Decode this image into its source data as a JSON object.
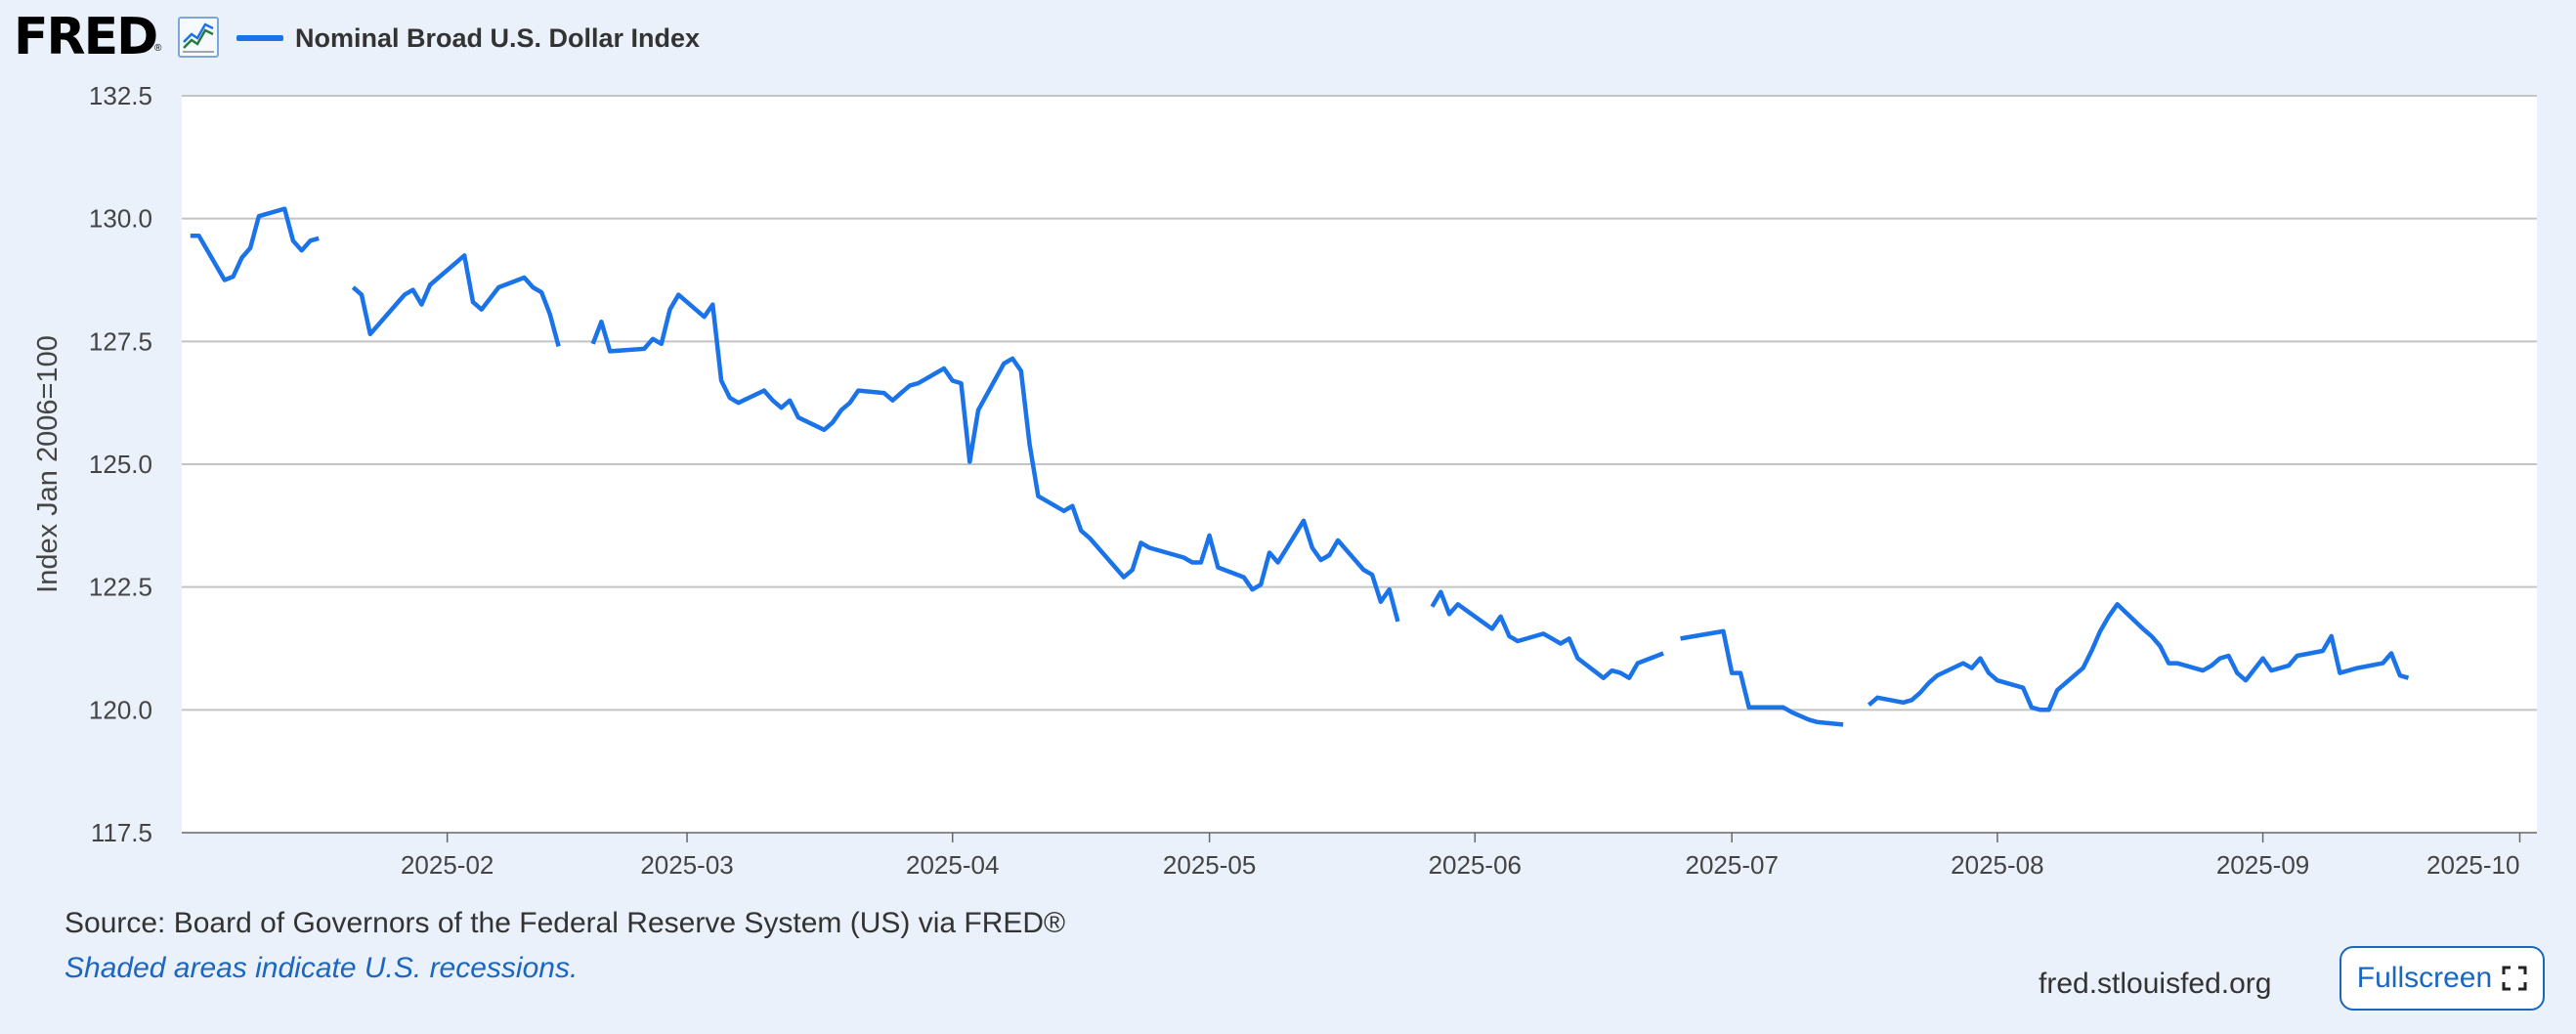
{
  "header": {
    "logo_text": "FRED",
    "logo_reg": "®",
    "graph_icon": "line-graph-icon",
    "legend_label": "Nominal Broad U.S. Dollar Index"
  },
  "colors": {
    "series": "#1a73e8",
    "background": "#eaf1fa",
    "plot": "#ffffff",
    "grid": "#c4c4c4",
    "link": "#1a66c0"
  },
  "footer": {
    "source": "Source: Board of Governors of the Federal Reserve System (US) via FRED®",
    "recessions": "Shaded areas indicate U.S. recessions.",
    "site": "fred.stlouisfed.org",
    "fullscreen_label": "Fullscreen",
    "fullscreen_icon": "expand-icon"
  },
  "chart_data": {
    "type": "line",
    "ylabel": "Index Jan 2006=100",
    "ylim": [
      117.5,
      132.5
    ],
    "yticks": [
      117.5,
      120.0,
      122.5,
      125.0,
      127.5,
      130.0,
      132.5
    ],
    "ytick_labels": [
      "117.5",
      "120.0",
      "122.5",
      "125.0",
      "127.5",
      "130.0",
      "132.5"
    ],
    "xlim": [
      "2025-01-01",
      "2025-10-03"
    ],
    "xtick_labels": [
      "2025-02",
      "2025-03",
      "2025-04",
      "2025-05",
      "2025-06",
      "2025-07",
      "2025-08",
      "2025-09",
      "2025-10"
    ],
    "xticks": [
      "2025-02-01",
      "2025-03-01",
      "2025-04-01",
      "2025-05-01",
      "2025-06-01",
      "2025-07-01",
      "2025-08-01",
      "2025-09-01",
      "2025-10-01"
    ],
    "grid": "horizontal",
    "legend": "top-left",
    "series": [
      {
        "name": "Nominal Broad U.S. Dollar Index",
        "segments": [
          [
            [
              "2025-01-02",
              129.65
            ],
            [
              "2025-01-03",
              129.65
            ],
            [
              "2025-01-06",
              128.75
            ],
            [
              "2025-01-07",
              128.82
            ],
            [
              "2025-01-08",
              129.2
            ],
            [
              "2025-01-09",
              129.4
            ],
            [
              "2025-01-10",
              130.05
            ],
            [
              "2025-01-13",
              130.2
            ],
            [
              "2025-01-14",
              129.55
            ],
            [
              "2025-01-15",
              129.35
            ],
            [
              "2025-01-16",
              129.55
            ],
            [
              "2025-01-17",
              129.6
            ]
          ],
          [
            [
              "2025-01-21",
              128.6
            ],
            [
              "2025-01-22",
              128.45
            ],
            [
              "2025-01-23",
              127.65
            ],
            [
              "2025-01-27",
              128.45
            ],
            [
              "2025-01-28",
              128.55
            ],
            [
              "2025-01-29",
              128.25
            ],
            [
              "2025-01-30",
              128.65
            ],
            [
              "2025-02-03",
              129.25
            ],
            [
              "2025-02-04",
              128.3
            ],
            [
              "2025-02-05",
              128.15
            ],
            [
              "2025-02-07",
              128.6
            ],
            [
              "2025-02-10",
              128.8
            ],
            [
              "2025-02-11",
              128.6
            ],
            [
              "2025-02-12",
              128.5
            ],
            [
              "2025-02-13",
              128.05
            ],
            [
              "2025-02-14",
              127.4
            ]
          ],
          [
            [
              "2025-02-18",
              127.45
            ],
            [
              "2025-02-19",
              127.9
            ],
            [
              "2025-02-20",
              127.3
            ],
            [
              "2025-02-24",
              127.35
            ],
            [
              "2025-02-25",
              127.55
            ],
            [
              "2025-02-26",
              127.45
            ],
            [
              "2025-02-27",
              128.15
            ],
            [
              "2025-02-28",
              128.45
            ],
            [
              "2025-03-03",
              128.0
            ],
            [
              "2025-03-04",
              128.25
            ],
            [
              "2025-03-05",
              126.7
            ],
            [
              "2025-03-06",
              126.35
            ],
            [
              "2025-03-07",
              126.25
            ],
            [
              "2025-03-10",
              126.5
            ],
            [
              "2025-03-11",
              126.3
            ],
            [
              "2025-03-12",
              126.15
            ],
            [
              "2025-03-13",
              126.3
            ],
            [
              "2025-03-14",
              125.95
            ],
            [
              "2025-03-17",
              125.7
            ],
            [
              "2025-03-18",
              125.85
            ],
            [
              "2025-03-19",
              126.1
            ],
            [
              "2025-03-20",
              126.25
            ],
            [
              "2025-03-21",
              126.5
            ],
            [
              "2025-03-24",
              126.45
            ],
            [
              "2025-03-25",
              126.3
            ],
            [
              "2025-03-26",
              126.45
            ],
            [
              "2025-03-27",
              126.6
            ],
            [
              "2025-03-28",
              126.65
            ],
            [
              "2025-03-31",
              126.95
            ],
            [
              "2025-04-01",
              126.7
            ],
            [
              "2025-04-02",
              126.65
            ],
            [
              "2025-04-03",
              125.05
            ],
            [
              "2025-04-04",
              126.1
            ],
            [
              "2025-04-07",
              127.05
            ],
            [
              "2025-04-08",
              127.15
            ],
            [
              "2025-04-09",
              126.9
            ],
            [
              "2025-04-10",
              125.4
            ],
            [
              "2025-04-11",
              124.35
            ],
            [
              "2025-04-14",
              124.05
            ],
            [
              "2025-04-15",
              124.15
            ],
            [
              "2025-04-16",
              123.65
            ],
            [
              "2025-04-17",
              123.5
            ],
            [
              "2025-04-21",
              122.7
            ],
            [
              "2025-04-22",
              122.85
            ],
            [
              "2025-04-23",
              123.4
            ],
            [
              "2025-04-24",
              123.3
            ],
            [
              "2025-04-25",
              123.25
            ],
            [
              "2025-04-28",
              123.1
            ],
            [
              "2025-04-29",
              123.0
            ],
            [
              "2025-04-30",
              123.0
            ],
            [
              "2025-05-01",
              123.55
            ],
            [
              "2025-05-02",
              122.9
            ],
            [
              "2025-05-05",
              122.7
            ],
            [
              "2025-05-06",
              122.45
            ],
            [
              "2025-05-07",
              122.55
            ],
            [
              "2025-05-08",
              123.2
            ],
            [
              "2025-05-09",
              123.0
            ],
            [
              "2025-05-12",
              123.85
            ],
            [
              "2025-05-13",
              123.3
            ],
            [
              "2025-05-14",
              123.05
            ],
            [
              "2025-05-15",
              123.15
            ],
            [
              "2025-05-16",
              123.45
            ],
            [
              "2025-05-19",
              122.85
            ],
            [
              "2025-05-20",
              122.75
            ],
            [
              "2025-05-21",
              122.2
            ],
            [
              "2025-05-22",
              122.45
            ],
            [
              "2025-05-23",
              121.8
            ]
          ],
          [
            [
              "2025-05-27",
              122.1
            ],
            [
              "2025-05-28",
              122.4
            ],
            [
              "2025-05-29",
              121.95
            ],
            [
              "2025-05-30",
              122.15
            ],
            [
              "2025-06-03",
              121.65
            ],
            [
              "2025-06-04",
              121.9
            ],
            [
              "2025-06-05",
              121.5
            ],
            [
              "2025-06-06",
              121.4
            ],
            [
              "2025-06-09",
              121.55
            ],
            [
              "2025-06-10",
              121.45
            ],
            [
              "2025-06-11",
              121.35
            ],
            [
              "2025-06-12",
              121.45
            ],
            [
              "2025-06-13",
              121.05
            ],
            [
              "2025-06-16",
              120.65
            ],
            [
              "2025-06-17",
              120.8
            ],
            [
              "2025-06-18",
              120.75
            ],
            [
              "2025-06-19",
              120.65
            ],
            [
              "2025-06-20",
              120.95
            ],
            [
              "2025-06-23",
              121.15
            ]
          ],
          [
            [
              "2025-06-25",
              121.45
            ],
            [
              "2025-06-30",
              121.6
            ],
            [
              "2025-07-01",
              120.75
            ],
            [
              "2025-07-02",
              120.75
            ],
            [
              "2025-07-03",
              120.05
            ],
            [
              "2025-07-07",
              120.05
            ],
            [
              "2025-07-08",
              119.95
            ],
            [
              "2025-07-10",
              119.8
            ],
            [
              "2025-07-11",
              119.75
            ],
            [
              "2025-07-14",
              119.7
            ]
          ],
          [
            [
              "2025-07-17",
              120.1
            ],
            [
              "2025-07-18",
              120.25
            ],
            [
              "2025-07-21",
              120.15
            ],
            [
              "2025-07-22",
              120.2
            ],
            [
              "2025-07-23",
              120.35
            ],
            [
              "2025-07-24",
              120.55
            ],
            [
              "2025-07-25",
              120.7
            ],
            [
              "2025-07-28",
              120.95
            ],
            [
              "2025-07-29",
              120.85
            ],
            [
              "2025-07-30",
              121.05
            ],
            [
              "2025-07-31",
              120.75
            ],
            [
              "2025-08-01",
              120.6
            ],
            [
              "2025-08-04",
              120.45
            ],
            [
              "2025-08-05",
              120.05
            ],
            [
              "2025-08-06",
              120.0
            ],
            [
              "2025-08-07",
              120.0
            ],
            [
              "2025-08-08",
              120.4
            ],
            [
              "2025-08-11",
              120.85
            ],
            [
              "2025-08-12",
              121.2
            ],
            [
              "2025-08-13",
              121.6
            ],
            [
              "2025-08-14",
              121.9
            ],
            [
              "2025-08-15",
              122.15
            ],
            [
              "2025-08-18",
              121.65
            ],
            [
              "2025-08-19",
              121.5
            ],
            [
              "2025-08-20",
              121.3
            ],
            [
              "2025-08-21",
              120.95
            ],
            [
              "2025-08-22",
              120.95
            ],
            [
              "2025-08-25",
              120.8
            ],
            [
              "2025-08-26",
              120.9
            ],
            [
              "2025-08-27",
              121.05
            ],
            [
              "2025-08-28",
              121.1
            ],
            [
              "2025-08-29",
              120.75
            ],
            [
              "2025-08-30",
              120.6
            ],
            [
              "2025-09-01",
              121.05
            ],
            [
              "2025-09-02",
              120.8
            ],
            [
              "2025-09-03",
              120.85
            ],
            [
              "2025-09-04",
              120.9
            ],
            [
              "2025-09-05",
              121.1
            ],
            [
              "2025-09-08",
              121.2
            ],
            [
              "2025-09-09",
              121.5
            ],
            [
              "2025-09-10",
              120.75
            ],
            [
              "2025-09-11",
              120.8
            ],
            [
              "2025-09-12",
              120.85
            ],
            [
              "2025-09-15",
              120.95
            ],
            [
              "2025-09-16",
              121.15
            ],
            [
              "2025-09-17",
              120.7
            ],
            [
              "2025-09-18",
              120.65
            ]
          ]
        ]
      }
    ]
  }
}
